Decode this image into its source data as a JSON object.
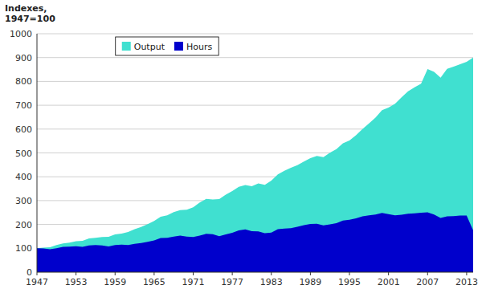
{
  "chart_data": {
    "type": "area",
    "y_label": "Indexes,\n1947=100",
    "x": [
      1947,
      1948,
      1949,
      1950,
      1951,
      1952,
      1953,
      1954,
      1955,
      1956,
      1957,
      1958,
      1959,
      1960,
      1961,
      1962,
      1963,
      1964,
      1965,
      1966,
      1967,
      1968,
      1969,
      1970,
      1971,
      1972,
      1973,
      1974,
      1975,
      1976,
      1977,
      1978,
      1979,
      1980,
      1981,
      1982,
      1983,
      1984,
      1985,
      1986,
      1987,
      1988,
      1989,
      1990,
      1991,
      1992,
      1993,
      1994,
      1995,
      1996,
      1997,
      1998,
      1999,
      2000,
      2001,
      2002,
      2003,
      2004,
      2005,
      2006,
      2007,
      2008,
      2009,
      2010,
      2011,
      2012,
      2013,
      2014
    ],
    "series": [
      {
        "name": "Output",
        "color": "#40E0D0",
        "values": [
          100,
          103,
          104,
          114,
          120,
          124,
          130,
          131,
          141,
          144,
          147,
          148,
          158,
          162,
          168,
          180,
          189,
          201,
          215,
          232,
          238,
          252,
          260,
          262,
          272,
          292,
          307,
          305,
          306,
          325,
          340,
          358,
          365,
          360,
          372,
          366,
          384,
          410,
          425,
          438,
          449,
          464,
          478,
          487,
          482,
          501,
          516,
          540,
          552,
          574,
          600,
          624,
          648,
          679,
          690,
          706,
          733,
          758,
          775,
          790,
          852,
          840,
          816,
          853,
          862,
          872,
          882,
          900
        ]
      },
      {
        "name": "Hours",
        "color": "#0000CC",
        "values": [
          100,
          99,
          96,
          100,
          106,
          107,
          109,
          106,
          112,
          114,
          112,
          108,
          114,
          115,
          114,
          119,
          122,
          127,
          133,
          143,
          144,
          149,
          153,
          149,
          147,
          153,
          161,
          159,
          151,
          158,
          165,
          175,
          179,
          172,
          171,
          163,
          166,
          180,
          183,
          184,
          190,
          197,
          202,
          203,
          196,
          200,
          205,
          216,
          220,
          226,
          234,
          238,
          242,
          248,
          243,
          238,
          241,
          245,
          247,
          249,
          251,
          242,
          227,
          234,
          235,
          237,
          237,
          175
        ]
      }
    ],
    "xlim": [
      1947,
      2014
    ],
    "xticks": [
      1947,
      1953,
      1959,
      1965,
      1971,
      1977,
      1983,
      1989,
      1995,
      2001,
      2007,
      2013
    ],
    "ylim": [
      0,
      1000
    ],
    "yticks": [
      0,
      100,
      200,
      300,
      400,
      500,
      600,
      700,
      800,
      900,
      1000
    ],
    "grid": true,
    "legend": "upper left"
  }
}
